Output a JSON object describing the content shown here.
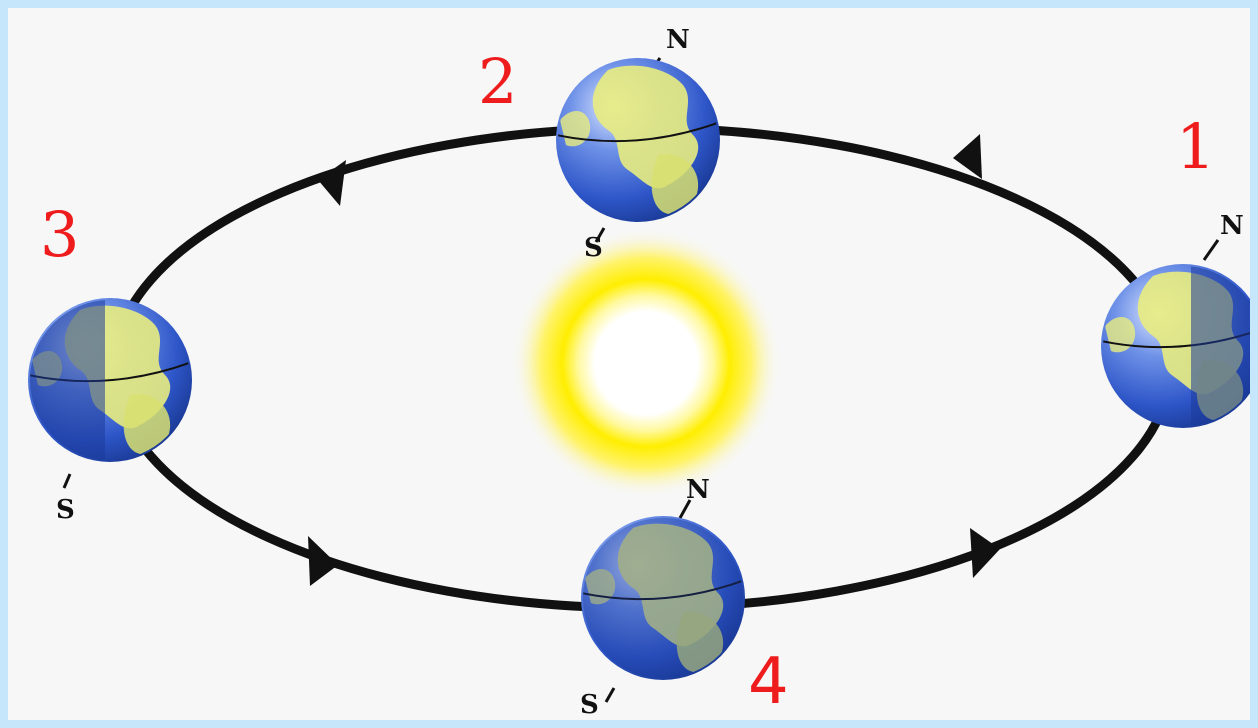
{
  "positions": [
    {
      "id": "1",
      "label": "1",
      "north": "N",
      "south": ""
    },
    {
      "id": "2",
      "label": "2",
      "north": "N",
      "south": "S"
    },
    {
      "id": "3",
      "label": "3",
      "north": "",
      "south": "S"
    },
    {
      "id": "4",
      "label": "4",
      "north": "N",
      "south": "S"
    }
  ],
  "colors": {
    "page_border": "#c6e6fb",
    "background": "#f7f7f7",
    "orbit": "#111111",
    "position_label": "#ee1c1c",
    "sun_glow": "#ffee00",
    "ocean": "#2e56c8",
    "land": "#e8ec80"
  },
  "icons": [
    "sun-icon",
    "earth-globe-icon",
    "orbit-direction-arrow-icon"
  ]
}
